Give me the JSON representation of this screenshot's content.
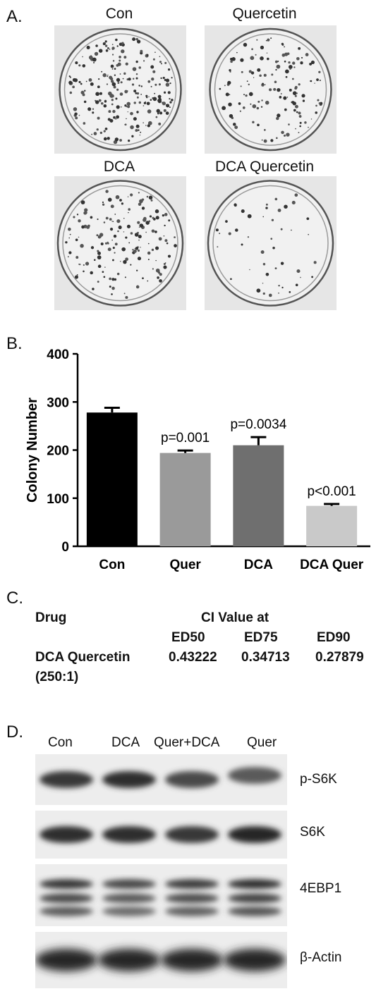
{
  "panel_a": {
    "letter": "A.",
    "plates": [
      {
        "title": "Con",
        "density": 0.9
      },
      {
        "title": "Quercetin",
        "density": 0.55
      },
      {
        "title": "DCA",
        "density": 0.65
      },
      {
        "title": "DCA Quercetin",
        "density": 0.18
      }
    ]
  },
  "panel_b": {
    "letter": "B."
  },
  "chart_data": {
    "type": "bar",
    "categories": [
      "Con",
      "Quer",
      "DCA",
      "DCA Quer"
    ],
    "values": [
      278,
      194,
      210,
      84
    ],
    "errors": [
      10,
      5,
      17,
      4
    ],
    "bar_colors": [
      "#000000",
      "#9a9a9a",
      "#6f6f6f",
      "#c9c9c9"
    ],
    "annotations": [
      "",
      "p=0.001",
      "p=0.0034",
      "p<0.001"
    ],
    "ylabel": "Colony Number",
    "xlabel": "",
    "ylim": [
      0,
      400
    ],
    "yticks": [
      0,
      100,
      200,
      300,
      400
    ],
    "grid": false
  },
  "panel_c": {
    "letter": "C.",
    "drug_header": "Drug",
    "ci_header": "CI Value at",
    "ed_headers": [
      "ED50",
      "ED75",
      "ED90"
    ],
    "drug_name": "DCA Quercetin",
    "ratio": "(250:1)",
    "values": [
      "0.43222",
      "0.34713",
      "0.27879"
    ]
  },
  "panel_d": {
    "letter": "D.",
    "lanes": [
      "Con",
      "DCA",
      "Quer+DCA",
      "Quer"
    ],
    "blots": [
      {
        "label": "p-S6K",
        "intensity": [
          0.85,
          0.95,
          0.7,
          0.55
        ]
      },
      {
        "label": "S6K",
        "intensity": [
          0.95,
          0.95,
          0.85,
          1.0
        ]
      },
      {
        "label": "4EBP1",
        "intensity": [
          0.85,
          0.7,
          0.8,
          0.9
        ]
      },
      {
        "label": "β-Actin",
        "intensity": [
          1.0,
          1.0,
          1.0,
          1.0
        ]
      }
    ]
  }
}
